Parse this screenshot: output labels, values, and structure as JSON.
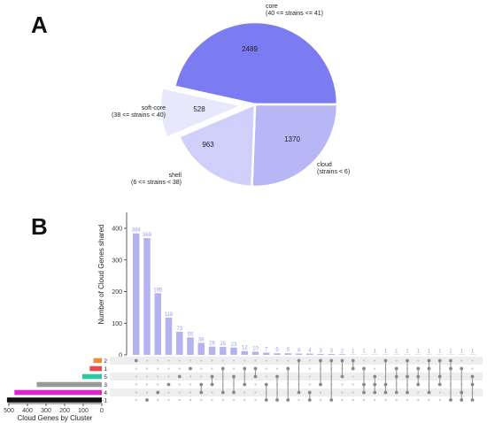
{
  "panels": {
    "a_label": "A",
    "b_label": "B"
  },
  "chart_data": [
    {
      "type": "pie",
      "slices": [
        {
          "name": "core",
          "range": "(40 <= strains <= 41)",
          "value": 2489,
          "color": "#7b7bf2",
          "exploded": false
        },
        {
          "name": "cloud",
          "range": "(strains < 6)",
          "value": 1370,
          "color": "#b7b7f6",
          "exploded": false
        },
        {
          "name": "shell",
          "range": "(6 <= strains < 38)",
          "value": 963,
          "color": "#cfcff9",
          "exploded": false
        },
        {
          "name": "soft-core",
          "range": "(38 <= strains < 40)",
          "value": 528,
          "color": "#e8e8fc",
          "exploded": true
        }
      ]
    },
    {
      "type": "bar",
      "subtype": "upset",
      "ylabel": "Number of Cloud Genes shared",
      "ylim": [
        0,
        400
      ],
      "yticks": [
        0,
        100,
        200,
        300,
        400
      ],
      "bar_color": "#b3b3f0",
      "values": [
        384,
        369,
        195,
        118,
        73,
        55,
        38,
        26,
        25,
        23,
        12,
        10,
        7,
        5,
        5,
        4,
        4,
        3,
        3,
        2,
        1,
        1,
        1,
        1,
        1,
        1,
        1,
        1,
        1,
        1,
        1,
        1
      ],
      "sets": [
        "2",
        "1",
        "5",
        "3",
        "4",
        "-1"
      ],
      "set_sizes": {
        "xlabel": "Cloud Genes by Cluster",
        "xlim": [
          0,
          500
        ],
        "xticks": [
          500,
          400,
          300,
          200,
          100,
          0
        ],
        "values": [
          45,
          65,
          105,
          350,
          470,
          510
        ],
        "colors": [
          "#f08a3c",
          "#e84a4a",
          "#2ec9a1",
          "#999999",
          "#e024c8",
          "#111111"
        ]
      },
      "combinations": [
        [
          0
        ],
        [
          5
        ],
        [
          4
        ],
        [
          3
        ],
        [
          2
        ],
        [
          1
        ],
        [
          3,
          4
        ],
        [
          2,
          3
        ],
        [
          1,
          4
        ],
        [
          2,
          4
        ],
        [
          1,
          3
        ],
        [
          1,
          2
        ],
        [
          3,
          5
        ],
        [
          2,
          5
        ],
        [
          1,
          5
        ],
        [
          0,
          4
        ],
        [
          4,
          5
        ],
        [
          0,
          3
        ],
        [
          0,
          5
        ],
        [
          0,
          2
        ],
        [
          0,
          1
        ],
        [
          1,
          3,
          4
        ],
        [
          2,
          3,
          4
        ],
        [
          0,
          3,
          4
        ],
        [
          1,
          2,
          4
        ],
        [
          0,
          2,
          4
        ],
        [
          1,
          2,
          3
        ],
        [
          0,
          1,
          4
        ],
        [
          0,
          2,
          3
        ],
        [
          0,
          1,
          5
        ],
        [
          1,
          4,
          5
        ],
        [
          2,
          3,
          5
        ]
      ]
    }
  ]
}
